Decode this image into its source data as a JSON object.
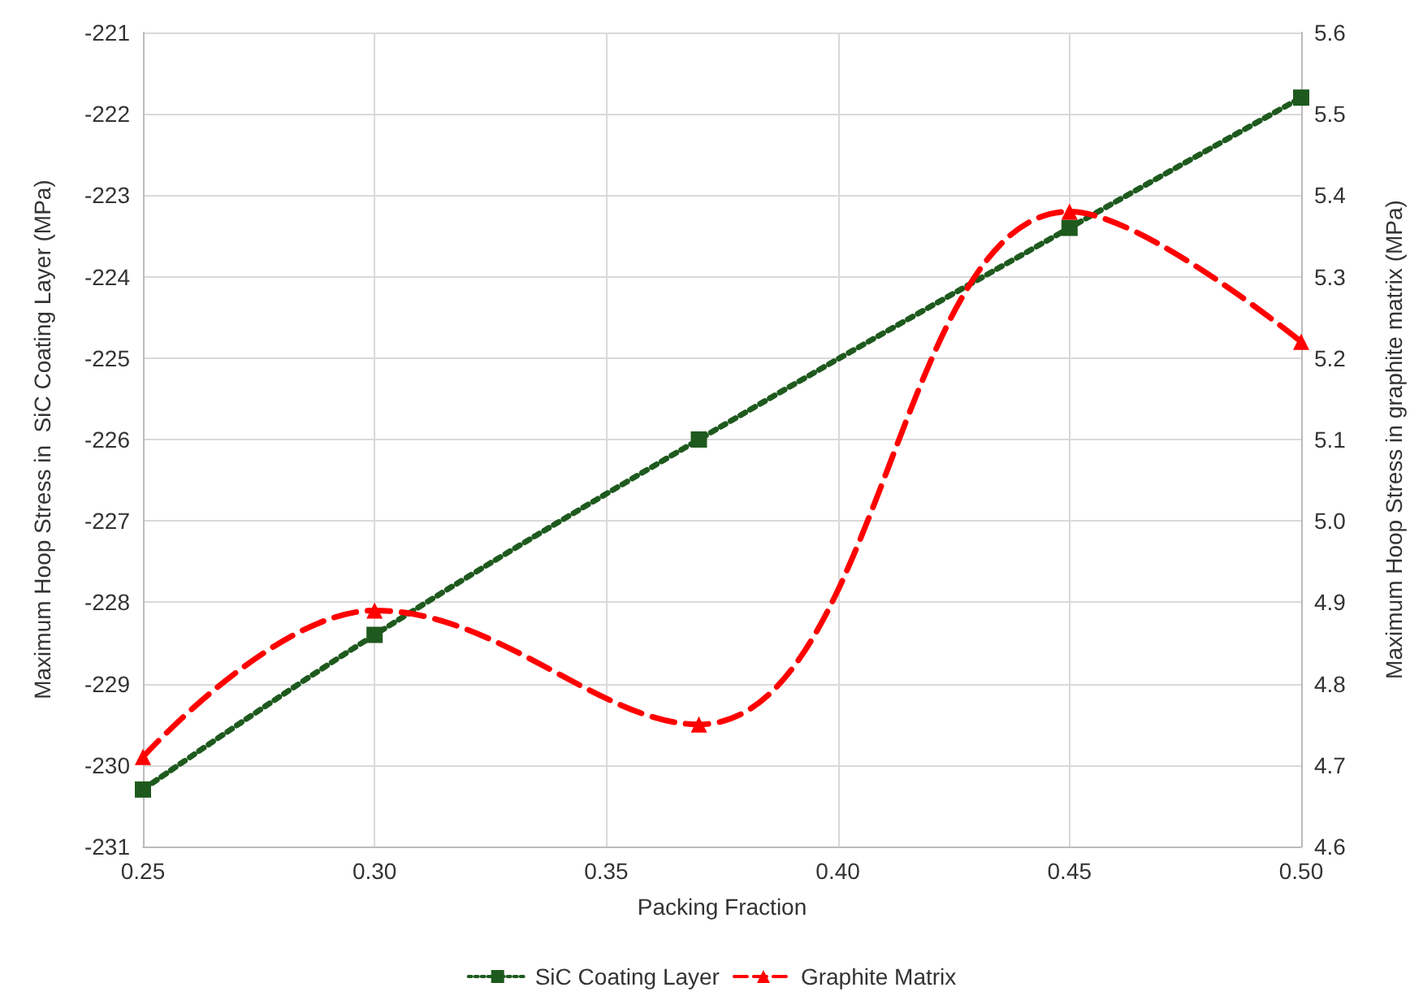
{
  "chart_data": {
    "type": "line",
    "xlabel": "Packing Fraction",
    "ylabel": "Maximum Hoop Stress in  SiC Coating Layer (MPa)",
    "y2label": "Maximum Hoop Stress in graphite matrix (MPa)",
    "x": [
      0.25,
      0.3,
      0.37,
      0.45,
      0.5
    ],
    "series": [
      {
        "name": "SiC Coating Layer",
        "color": "#1e5a1e",
        "values": [
          -230.3,
          -228.4,
          -226.0,
          -223.4,
          -221.8
        ],
        "marker": "square",
        "line_style": "dotted"
      },
      {
        "name": "Graphite Matrix",
        "color": "#ff0000",
        "values": [
          4.71,
          4.89,
          4.75,
          5.38,
          5.22
        ],
        "marker": "triangle",
        "line_style": "dashed",
        "axis": "y2"
      }
    ],
    "xlim": [
      0.25,
      0.5
    ],
    "xticks": [
      0.25,
      {
        "value": 0.3,
        "label": "0.30"
      },
      0.35,
      {
        "value": 0.4,
        "label": "0.40"
      },
      0.45,
      {
        "value": 0.5,
        "label": "0.50"
      }
    ],
    "ylim": [
      -231,
      -221
    ],
    "yticks": [
      -231,
      -230,
      -229,
      -228,
      -227,
      -226,
      -225,
      -224,
      -223,
      -222,
      -221
    ],
    "y2lim": [
      4.6,
      5.6
    ],
    "y2ticks": [
      4.6,
      4.7,
      4.8,
      4.9,
      {
        "value": 5.0,
        "label": "5.0"
      },
      5.1,
      5.2,
      5.3,
      5.4,
      5.5,
      5.6
    ],
    "grid": true,
    "legend": "bottom"
  }
}
